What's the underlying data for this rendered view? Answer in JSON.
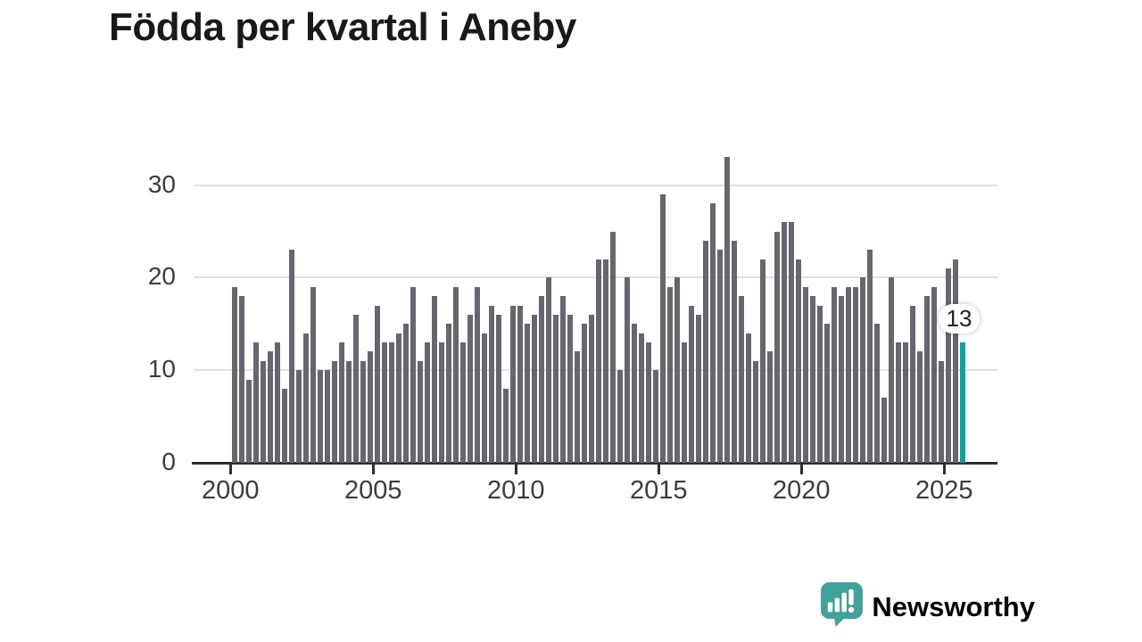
{
  "title": "Födda per kvartal i Aneby",
  "chart_data": {
    "type": "bar",
    "title": "Födda per kvartal i Aneby",
    "xlabel": "",
    "ylabel": "",
    "x_ticks": [
      "2000",
      "2005",
      "2010",
      "2015",
      "2020",
      "2025"
    ],
    "y_ticks": [
      "0",
      "10",
      "20",
      "30"
    ],
    "y_tick_values": [
      0,
      10,
      20,
      30
    ],
    "ylim": [
      0,
      33
    ],
    "grid": "horizontal",
    "legend": "none",
    "start_period": "2000Q1",
    "end_period": "2025Q3",
    "period_type": "quarter",
    "bar_color": "#66666e",
    "highlight_color": "#0ba29b",
    "highlight_index": 102,
    "highlight_value": 13,
    "highlight_label": "13",
    "values": [
      19,
      18,
      9,
      13,
      11,
      12,
      13,
      8,
      23,
      10,
      14,
      19,
      10,
      10,
      11,
      13,
      11,
      16,
      11,
      12,
      17,
      13,
      13,
      14,
      15,
      19,
      11,
      13,
      18,
      13,
      15,
      19,
      13,
      16,
      19,
      14,
      17,
      16,
      8,
      17,
      17,
      15,
      16,
      18,
      20,
      16,
      18,
      16,
      12,
      15,
      16,
      22,
      22,
      25,
      10,
      20,
      15,
      14,
      13,
      10,
      29,
      19,
      20,
      13,
      17,
      16,
      24,
      28,
      23,
      33,
      24,
      18,
      14,
      11,
      22,
      12,
      25,
      26,
      26,
      22,
      19,
      18,
      17,
      15,
      19,
      18,
      19,
      19,
      20,
      23,
      15,
      7,
      20,
      13,
      13,
      17,
      12,
      18,
      19,
      11,
      21,
      22,
      13
    ]
  },
  "logo": {
    "text": "Newsworthy",
    "text_color": "#3fa19a",
    "icon_color": "#42a29a",
    "icon": "newsworthy-chart-bubble-icon"
  }
}
